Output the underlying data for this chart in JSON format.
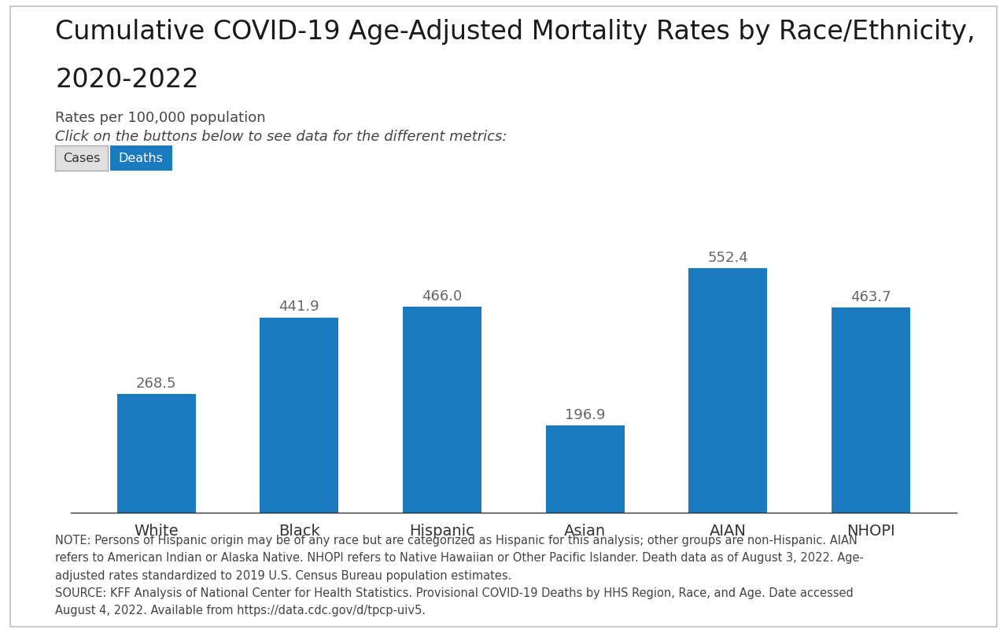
{
  "title_line1": "Cumulative COVID-19 Age-Adjusted Mortality Rates by Race/Ethnicity,",
  "title_line2": "2020-2022",
  "subtitle1": "Rates per 100,000 population",
  "subtitle2": "Click on the buttons below to see data for the different metrics:",
  "btn_cases_label": "Cases",
  "btn_deaths_label": "Deaths",
  "categories": [
    "White",
    "Black",
    "Hispanic",
    "Asian",
    "AIAN",
    "NHOPI"
  ],
  "values": [
    268.5,
    441.9,
    466.0,
    196.9,
    552.4,
    463.7
  ],
  "bar_color": "#1a7abf",
  "bar_edge_color": "none",
  "note_text": "NOTE: Persons of Hispanic origin may be of any race but are categorized as Hispanic for this analysis; other groups are non-Hispanic. AIAN\nrefers to American Indian or Alaska Native. NHOPI refers to Native Hawaiian or Other Pacific Islander. Death data as of August 3, 2022. Age-\nadjusted rates standardized to 2019 U.S. Census Bureau population estimates.\nSOURCE: KFF Analysis of National Center for Health Statistics. Provisional COVID-19 Deaths by HHS Region, Race, and Age. Date accessed\nAugust 4, 2022. Available from https://data.cdc.gov/d/tpcp-uiv5.",
  "ylim": [
    0,
    630
  ],
  "background_color": "#ffffff",
  "border_color": "#cccccc",
  "title_fontsize": 24,
  "subtitle_fontsize": 13,
  "value_label_fontsize": 13,
  "note_fontsize": 10.5,
  "tick_label_fontsize": 14,
  "btn_cases_bg": "#e0e0e0",
  "btn_deaths_bg": "#1a7abf",
  "btn_cases_text": "#333333",
  "btn_deaths_text": "#ffffff"
}
